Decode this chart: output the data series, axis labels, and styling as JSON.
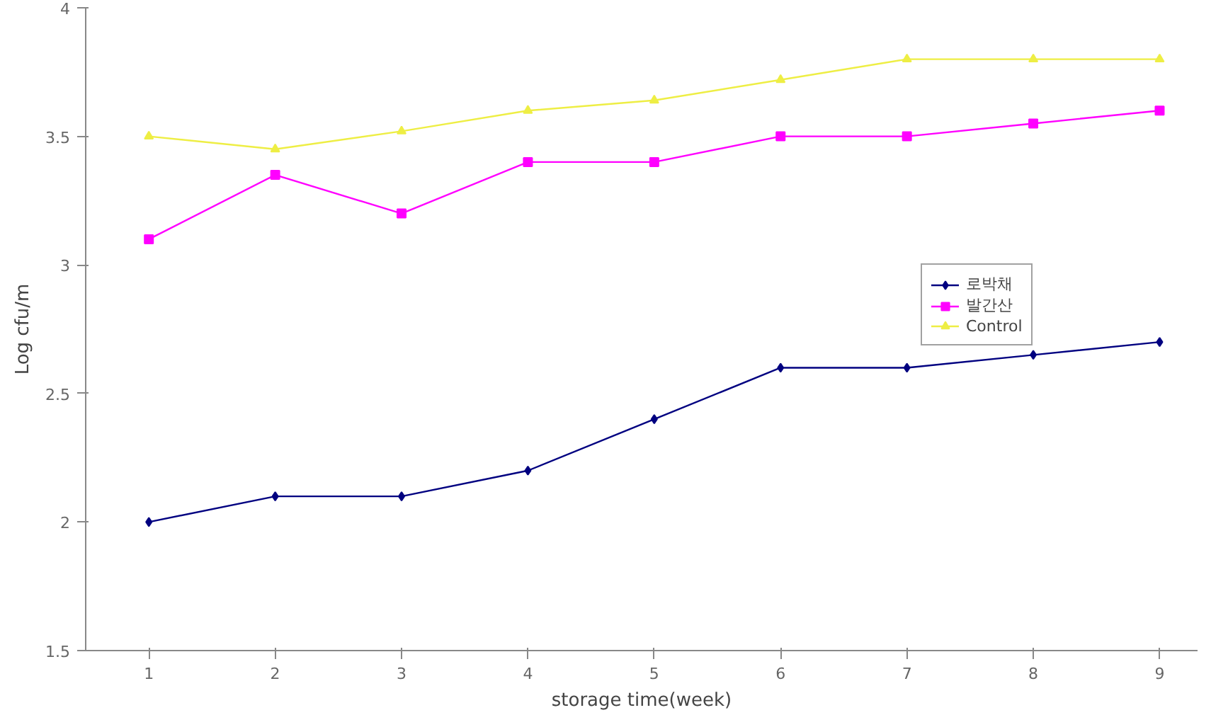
{
  "chart_data": {
    "type": "line",
    "xlabel": "storage time(week)",
    "ylabel": "Log cfu/m",
    "x": [
      1,
      2,
      3,
      4,
      5,
      6,
      7,
      8,
      9
    ],
    "xlim": [
      0.5,
      9.3
    ],
    "xticks": [
      1,
      2,
      3,
      4,
      5,
      6,
      7,
      8,
      9
    ],
    "ylim": [
      1.5,
      4
    ],
    "yticks": [
      1.5,
      2,
      2.5,
      3,
      3.5,
      4
    ],
    "grid": false,
    "legend": "right",
    "line_style": "solid",
    "series": [
      {
        "name": "로박채",
        "color": "#000080",
        "marker": "diamond",
        "values": [
          2.0,
          2.1,
          2.1,
          2.2,
          2.4,
          2.6,
          2.6,
          2.65,
          2.7
        ]
      },
      {
        "name": "발간산",
        "color": "#ff00ff",
        "marker": "square",
        "values": [
          3.1,
          3.35,
          3.2,
          3.4,
          3.4,
          3.5,
          3.5,
          3.55,
          3.6
        ]
      },
      {
        "name": "Control",
        "color": "#eeee44",
        "marker": "triangle",
        "values": [
          3.5,
          3.45,
          3.52,
          3.6,
          3.64,
          3.72,
          3.8,
          3.8,
          3.8
        ]
      }
    ]
  }
}
